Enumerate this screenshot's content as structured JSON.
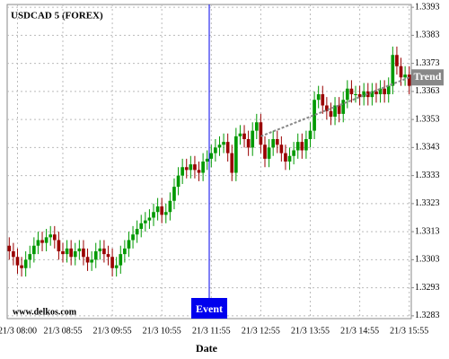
{
  "chart_data": {
    "type": "candlestick",
    "title": "USDCAD 5 (FOREX)",
    "x_label": "Date",
    "watermark": "www.delkos.com",
    "categories": [
      null,
      null,
      "21/3 08:00",
      null,
      null,
      null,
      null,
      null,
      null,
      null,
      null,
      null,
      null,
      "21/3 08:55",
      null,
      null,
      null,
      null,
      null,
      null,
      null,
      null,
      null,
      null,
      null,
      "21/3 09:55",
      null,
      null,
      null,
      null,
      null,
      null,
      null,
      null,
      null,
      null,
      null,
      "21/3 10:55",
      null,
      null,
      null,
      null,
      null,
      null,
      null,
      null,
      null,
      null,
      null,
      "21/3 11:55",
      null,
      null,
      null,
      null,
      null,
      null,
      null,
      null,
      null,
      null,
      null,
      "21/3 12:55",
      null,
      null,
      null,
      null,
      null,
      null,
      null,
      null,
      null,
      null,
      null,
      "21/3 13:55",
      null,
      null,
      null,
      null,
      null,
      null,
      null,
      null,
      null,
      null,
      null,
      "21/3 14:55",
      null,
      null,
      null,
      null,
      null,
      null,
      null,
      null,
      null,
      null,
      null,
      "21/3 15:55"
    ],
    "open": [
      1.3308,
      1.3306,
      1.3304,
      1.3301,
      1.33,
      1.3303,
      1.3305,
      1.3308,
      1.331,
      1.3309,
      1.3311,
      1.3312,
      1.331,
      1.3306,
      1.3305,
      1.3307,
      1.3304,
      1.3306,
      1.3307,
      1.3304,
      1.3302,
      1.3303,
      1.3306,
      1.3307,
      1.3305,
      1.3304,
      1.33,
      1.3301,
      1.3305,
      1.3307,
      1.331,
      1.3312,
      1.3314,
      1.3316,
      1.3317,
      1.3318,
      1.332,
      1.3322,
      1.3319,
      1.332,
      1.3324,
      1.3329,
      1.3333,
      1.3336,
      1.3335,
      1.3337,
      1.3335,
      1.3334,
      1.3338,
      1.3339,
      1.3341,
      1.3343,
      1.3344,
      1.3345,
      1.3341,
      1.3334,
      1.3347,
      1.3348,
      1.3346,
      1.3343,
      1.3349,
      1.3352,
      1.3344,
      1.3339,
      1.3343,
      1.3346,
      1.3344,
      1.3341,
      1.3338,
      1.334,
      1.3342,
      1.3345,
      1.3342,
      1.3346,
      1.3349,
      1.336,
      1.3362,
      1.3358,
      1.3356,
      1.3354,
      1.3358,
      1.3355,
      1.336,
      1.3364,
      1.3362,
      1.3362,
      1.3361,
      1.3363,
      1.3361,
      1.3363,
      1.3362,
      1.3364,
      1.3362,
      1.3365,
      1.3376,
      1.3372,
      1.3368,
      1.3369
    ],
    "high": [
      1.3311,
      1.3309,
      1.3307,
      1.3304,
      1.3306,
      1.3308,
      1.3311,
      1.3313,
      1.3313,
      1.3314,
      1.3315,
      1.3315,
      1.3313,
      1.3309,
      1.331,
      1.331,
      1.3309,
      1.331,
      1.331,
      1.3307,
      1.3306,
      1.3309,
      1.331,
      1.331,
      1.3308,
      1.3307,
      1.3304,
      1.3308,
      1.331,
      1.3313,
      1.3315,
      1.3317,
      1.3319,
      1.332,
      1.3321,
      1.3323,
      1.3325,
      1.3325,
      1.3323,
      1.3327,
      1.3332,
      1.3336,
      1.3339,
      1.3339,
      1.334,
      1.334,
      1.3338,
      1.3341,
      1.3342,
      1.3344,
      1.3346,
      1.3347,
      1.3348,
      1.3348,
      1.3344,
      1.335,
      1.3351,
      1.3351,
      1.3349,
      1.3352,
      1.3355,
      1.3355,
      1.3347,
      1.3346,
      1.3349,
      1.3349,
      1.3347,
      1.3344,
      1.3343,
      1.3345,
      1.3348,
      1.3348,
      1.3349,
      1.3352,
      1.3363,
      1.3365,
      1.3365,
      1.3361,
      1.3359,
      1.3361,
      1.3361,
      1.3363,
      1.3367,
      1.3367,
      1.3365,
      1.3365,
      1.3366,
      1.3366,
      1.3366,
      1.3366,
      1.3367,
      1.3367,
      1.3368,
      1.3379,
      1.3379,
      1.3375,
      1.3372,
      1.3372
    ],
    "low": [
      1.3303,
      1.3301,
      1.3298,
      1.3297,
      1.3297,
      1.33,
      1.3302,
      1.3305,
      1.3306,
      1.3306,
      1.3308,
      1.3307,
      1.3303,
      1.3302,
      1.3302,
      1.3301,
      1.3301,
      1.3303,
      1.3301,
      1.3299,
      1.3299,
      1.33,
      1.3303,
      1.3302,
      1.3301,
      1.3297,
      1.3297,
      1.3298,
      1.3302,
      1.3304,
      1.3307,
      1.3309,
      1.3311,
      1.3313,
      1.3314,
      1.3315,
      1.3317,
      1.3316,
      1.3316,
      1.3317,
      1.3321,
      1.3326,
      1.333,
      1.3332,
      1.3332,
      1.3332,
      1.3331,
      1.3331,
      1.3335,
      1.3336,
      1.3338,
      1.334,
      1.3341,
      1.3338,
      1.3331,
      1.3331,
      1.3344,
      1.3343,
      1.334,
      1.334,
      1.3346,
      1.3341,
      1.3336,
      1.3336,
      1.334,
      1.3341,
      1.3338,
      1.3335,
      1.3335,
      1.3337,
      1.3339,
      1.3339,
      1.3339,
      1.3343,
      1.3346,
      1.3357,
      1.3355,
      1.3353,
      1.3351,
      1.3351,
      1.3352,
      1.3352,
      1.3357,
      1.3359,
      1.3359,
      1.3358,
      1.3358,
      1.3358,
      1.3358,
      1.3359,
      1.3359,
      1.3359,
      1.3359,
      1.3362,
      1.3369,
      1.3365,
      1.3365,
      1.3362
    ],
    "close": [
      1.3306,
      1.3304,
      1.3301,
      1.33,
      1.3303,
      1.3305,
      1.3308,
      1.331,
      1.3309,
      1.3311,
      1.3312,
      1.331,
      1.3306,
      1.3305,
      1.3307,
      1.3304,
      1.3306,
      1.3307,
      1.3304,
      1.3302,
      1.3303,
      1.3306,
      1.3307,
      1.3305,
      1.3304,
      1.33,
      1.3301,
      1.3305,
      1.3307,
      1.331,
      1.3312,
      1.3314,
      1.3316,
      1.3317,
      1.3318,
      1.332,
      1.3322,
      1.3319,
      1.332,
      1.3324,
      1.3329,
      1.3333,
      1.3336,
      1.3335,
      1.3337,
      1.3335,
      1.3334,
      1.3338,
      1.3339,
      1.3341,
      1.3343,
      1.3344,
      1.3345,
      1.3341,
      1.3334,
      1.3347,
      1.3348,
      1.3346,
      1.3343,
      1.3349,
      1.3352,
      1.3344,
      1.3339,
      1.3343,
      1.3346,
      1.3344,
      1.3341,
      1.3338,
      1.334,
      1.3342,
      1.3345,
      1.3342,
      1.3346,
      1.3349,
      1.336,
      1.3362,
      1.3358,
      1.3356,
      1.3354,
      1.3358,
      1.3355,
      1.336,
      1.3364,
      1.3362,
      1.3362,
      1.3361,
      1.3363,
      1.3361,
      1.3363,
      1.3362,
      1.3364,
      1.3362,
      1.3365,
      1.3376,
      1.3372,
      1.3368,
      1.3369,
      1.3365
    ],
    "up_color": "#009900",
    "down_color": "#990000",
    "ylim": [
      1.3282,
      1.3394
    ],
    "yticks": [
      1.3393,
      1.3383,
      1.3373,
      1.3363,
      1.3353,
      1.3343,
      1.3333,
      1.3323,
      1.3313,
      1.3303,
      1.3293,
      1.3283
    ],
    "grid": true,
    "event": {
      "label": "Event",
      "at": "21/3 11:55",
      "color": "#0000ee"
    },
    "trend": {
      "label": "Trend",
      "from": "21/3 12:55",
      "to": "21/3 15:55",
      "from_value": 1.3347,
      "to_value": 1.3368,
      "color": "#888888"
    }
  }
}
